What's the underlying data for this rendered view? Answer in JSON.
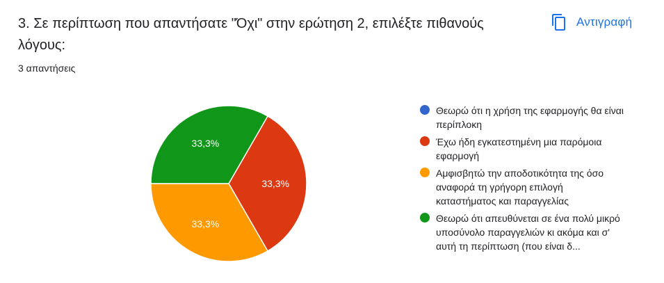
{
  "question": {
    "title": "3. Σε περίπτωση που απαντήσατε \"Όχι\" στην ερώτηση 2, επιλέξτε πιθανούς λόγους:",
    "response_count": "3 απαντήσεις"
  },
  "toolbar": {
    "copy_label": "Αντιγραφή",
    "copy_icon": "copy-icon"
  },
  "colors": {
    "blue": "#3366cc",
    "red": "#dc3912",
    "orange": "#ff9900",
    "green": "#109618",
    "accent": "#1a73e8"
  },
  "chart_data": {
    "type": "pie",
    "slices": [
      {
        "label": "Θεωρώ ότι η χρήση της εφαρμογής θα είναι περίπλοκη",
        "value": 0,
        "display": "",
        "color": "#3366cc"
      },
      {
        "label": "Έχω ήδη εγκατεστημένη μια παρόμοια εφαρμογή",
        "value": 33.3,
        "display": "33,3%",
        "color": "#dc3912"
      },
      {
        "label": "Αμφισβητώ την αποδοτικότητα της όσο αναφορά τη γρήγορη επιλογή καταστήματος και παραγγελίας",
        "value": 33.3,
        "display": "33,3%",
        "color": "#ff9900"
      },
      {
        "label": "Θεωρώ ότι απευθύνεται σε ένα πολύ μικρό υποσύνολο παραγγελιών κι ακόμα και σ' αυτή τη περίπτωση (που είναι δ...",
        "value": 33.3,
        "display": "33,3%",
        "color": "#109618"
      }
    ],
    "legend_position": "right"
  }
}
